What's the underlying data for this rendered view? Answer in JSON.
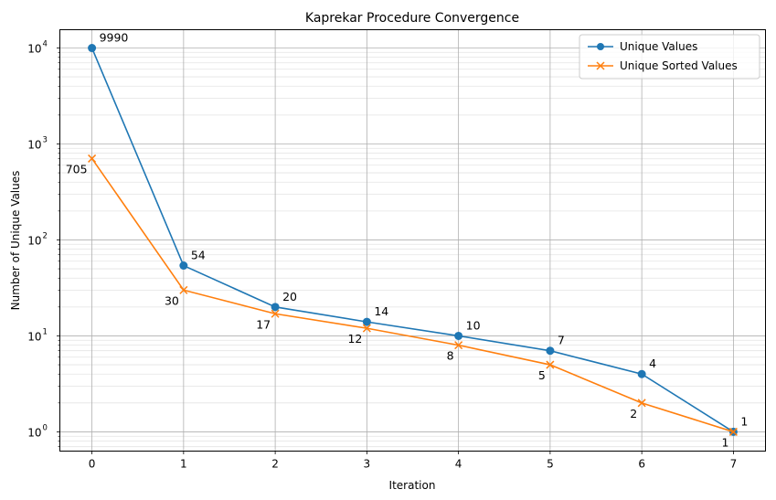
{
  "chart_data": {
    "type": "line",
    "title": "Kaprekar Procedure Convergence",
    "xlabel": "Iteration",
    "ylabel": "Number of Unique Values",
    "yscale": "log",
    "x": [
      0,
      1,
      2,
      3,
      4,
      5,
      6,
      7
    ],
    "xlim": [
      -0.35,
      7.35
    ],
    "ylim": [
      0.63,
      15500
    ],
    "x_ticks": [
      "0",
      "1",
      "2",
      "3",
      "4",
      "5",
      "6",
      "7"
    ],
    "y_ticks": [
      {
        "value": 1,
        "base": "10",
        "exp": "0"
      },
      {
        "value": 10,
        "base": "10",
        "exp": "1"
      },
      {
        "value": 100,
        "base": "10",
        "exp": "2"
      },
      {
        "value": 1000,
        "base": "10",
        "exp": "3"
      },
      {
        "value": 10000,
        "base": "10",
        "exp": "4"
      }
    ],
    "grid": true,
    "legend_position": "top-right",
    "series": [
      {
        "name": "Unique Values",
        "values": [
          9990,
          54,
          20,
          14,
          10,
          7,
          4,
          1
        ],
        "labels": [
          "9990",
          "54",
          "20",
          "14",
          "10",
          "7",
          "4",
          "1"
        ],
        "color": "#1f77b4",
        "marker": "circle"
      },
      {
        "name": "Unique Sorted Values",
        "values": [
          705,
          30,
          17,
          12,
          8,
          5,
          2,
          1
        ],
        "labels": [
          "705",
          "30",
          "17",
          "12",
          "8",
          "5",
          "2",
          "1"
        ],
        "color": "#ff7f0e",
        "marker": "x"
      }
    ]
  }
}
